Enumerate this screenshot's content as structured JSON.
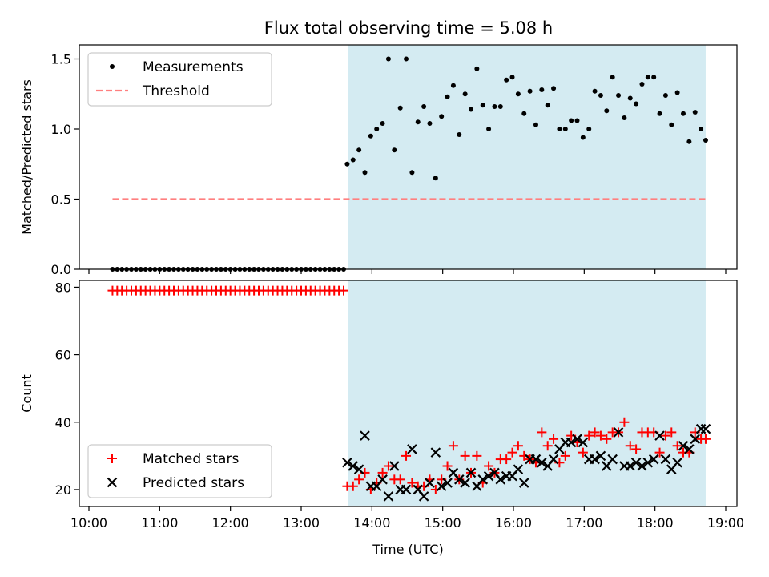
{
  "figure": {
    "title": "Flux total observing time = 5.08 h"
  },
  "chart_data": [
    {
      "type": "scatter",
      "ylabel": "Matched/Predicted stars",
      "xlabel": "",
      "xlim": [
        "10:00",
        "19:00"
      ],
      "ylim": [
        0,
        1.6
      ],
      "xticks": [
        "10:00",
        "11:00",
        "12:00",
        "13:00",
        "14:00",
        "15:00",
        "16:00",
        "17:00",
        "18:00",
        "19:00"
      ],
      "yticks": [
        0.0,
        0.5,
        1.0,
        1.5
      ],
      "ytick_labels": [
        "0.0",
        "0.5",
        "1.0",
        "1.5"
      ],
      "legend": {
        "placement": "top-left",
        "entries": [
          "Measurements",
          "Threshold"
        ]
      },
      "grid": false,
      "shaded_region": {
        "from": "13:40",
        "to": "18:43",
        "color": "#add8e6"
      },
      "series": [
        {
          "name": "Measurements",
          "marker": "dot",
          "color": "#000000",
          "x": [
            "10:20",
            "10:24",
            "10:28",
            "10:32",
            "10:36",
            "10:40",
            "10:44",
            "10:48",
            "10:52",
            "10:56",
            "11:00",
            "11:04",
            "11:08",
            "11:12",
            "11:16",
            "11:20",
            "11:24",
            "11:28",
            "11:32",
            "11:36",
            "11:40",
            "11:44",
            "11:48",
            "11:52",
            "11:56",
            "12:00",
            "12:04",
            "12:08",
            "12:12",
            "12:16",
            "12:20",
            "12:24",
            "12:28",
            "12:32",
            "12:36",
            "12:40",
            "12:44",
            "12:48",
            "12:52",
            "12:56",
            "13:00",
            "13:04",
            "13:08",
            "13:12",
            "13:16",
            "13:20",
            "13:24",
            "13:28",
            "13:32",
            "13:36",
            "13:39",
            "13:44",
            "13:49",
            "13:54",
            "13:59",
            "14:04",
            "14:09",
            "14:14",
            "14:19",
            "14:24",
            "14:29",
            "14:34",
            "14:39",
            "14:44",
            "14:49",
            "14:54",
            "14:59",
            "15:04",
            "15:09",
            "15:14",
            "15:19",
            "15:24",
            "15:29",
            "15:34",
            "15:39",
            "15:44",
            "15:49",
            "15:54",
            "15:59",
            "16:04",
            "16:09",
            "16:14",
            "16:19",
            "16:24",
            "16:29",
            "16:34",
            "16:39",
            "16:44",
            "16:49",
            "16:54",
            "16:59",
            "17:04",
            "17:09",
            "17:14",
            "17:19",
            "17:24",
            "17:29",
            "17:34",
            "17:39",
            "17:44",
            "17:49",
            "17:54",
            "17:59",
            "18:04",
            "18:09",
            "18:14",
            "18:19",
            "18:24",
            "18:29",
            "18:34",
            "18:39",
            "18:43"
          ],
          "y": [
            0,
            0,
            0,
            0,
            0,
            0,
            0,
            0,
            0,
            0,
            0,
            0,
            0,
            0,
            0,
            0,
            0,
            0,
            0,
            0,
            0,
            0,
            0,
            0,
            0,
            0,
            0,
            0,
            0,
            0,
            0,
            0,
            0,
            0,
            0,
            0,
            0,
            0,
            0,
            0,
            0,
            0,
            0,
            0,
            0,
            0,
            0,
            0,
            0,
            0,
            0.75,
            0.78,
            0.85,
            0.69,
            0.95,
            1.0,
            1.04,
            1.5,
            0.85,
            1.15,
            1.5,
            0.69,
            1.05,
            1.16,
            1.04,
            0.65,
            1.09,
            1.23,
            1.31,
            0.96,
            1.25,
            1.14,
            1.43,
            1.17,
            1.0,
            1.16,
            1.16,
            1.35,
            1.37,
            1.25,
            1.11,
            1.27,
            1.03,
            1.28,
            1.17,
            1.29,
            1.0,
            1.0,
            1.06,
            1.06,
            0.94,
            1.0,
            1.27,
            1.24,
            1.13,
            1.37,
            1.24,
            1.08,
            1.22,
            1.18,
            1.32,
            1.37,
            1.37,
            1.11,
            1.24,
            1.03,
            1.26,
            1.11,
            0.91,
            1.12,
            1.0,
            0.92
          ]
        },
        {
          "name": "Threshold",
          "marker": "dashed-line",
          "color": "#ff7f7f",
          "x": [
            "10:20",
            "18:43"
          ],
          "y": [
            0.5,
            0.5
          ]
        }
      ]
    },
    {
      "type": "scatter",
      "ylabel": "Count",
      "xlabel": "Time (UTC)",
      "xlim": [
        "10:00",
        "19:00"
      ],
      "ylim": [
        15,
        82
      ],
      "xticks": [
        "10:00",
        "11:00",
        "12:00",
        "13:00",
        "14:00",
        "15:00",
        "16:00",
        "17:00",
        "18:00",
        "19:00"
      ],
      "yticks": [
        20,
        40,
        60,
        80
      ],
      "ytick_labels": [
        "20",
        "40",
        "60",
        "80"
      ],
      "legend": {
        "placement": "bottom-left",
        "entries": [
          "Matched stars",
          "Predicted stars"
        ]
      },
      "grid": false,
      "shaded_region": {
        "from": "13:40",
        "to": "18:43",
        "color": "#add8e6"
      },
      "series": [
        {
          "name": "Matched stars",
          "marker": "plus",
          "color": "#ff0000",
          "x": [
            "10:20",
            "10:24",
            "10:28",
            "10:32",
            "10:36",
            "10:40",
            "10:44",
            "10:48",
            "10:52",
            "10:56",
            "11:00",
            "11:04",
            "11:08",
            "11:12",
            "11:16",
            "11:20",
            "11:24",
            "11:28",
            "11:32",
            "11:36",
            "11:40",
            "11:44",
            "11:48",
            "11:52",
            "11:56",
            "12:00",
            "12:04",
            "12:08",
            "12:12",
            "12:16",
            "12:20",
            "12:24",
            "12:28",
            "12:32",
            "12:36",
            "12:40",
            "12:44",
            "12:48",
            "12:52",
            "12:56",
            "13:00",
            "13:04",
            "13:08",
            "13:12",
            "13:16",
            "13:20",
            "13:24",
            "13:28",
            "13:32",
            "13:36",
            "13:39",
            "13:44",
            "13:49",
            "13:54",
            "13:59",
            "14:04",
            "14:09",
            "14:14",
            "14:19",
            "14:24",
            "14:29",
            "14:34",
            "14:39",
            "14:44",
            "14:49",
            "14:54",
            "14:59",
            "15:04",
            "15:09",
            "15:14",
            "15:19",
            "15:24",
            "15:29",
            "15:34",
            "15:39",
            "15:44",
            "15:49",
            "15:54",
            "15:59",
            "16:04",
            "16:09",
            "16:14",
            "16:19",
            "16:24",
            "16:29",
            "16:34",
            "16:39",
            "16:44",
            "16:49",
            "16:54",
            "16:59",
            "17:04",
            "17:09",
            "17:14",
            "17:19",
            "17:24",
            "17:29",
            "17:34",
            "17:39",
            "17:44",
            "17:49",
            "17:54",
            "17:59",
            "18:04",
            "18:09",
            "18:14",
            "18:19",
            "18:24",
            "18:29",
            "18:34",
            "18:39",
            "18:43"
          ],
          "y": [
            79,
            79,
            79,
            79,
            79,
            79,
            79,
            79,
            79,
            79,
            79,
            79,
            79,
            79,
            79,
            79,
            79,
            79,
            79,
            79,
            79,
            79,
            79,
            79,
            79,
            79,
            79,
            79,
            79,
            79,
            79,
            79,
            79,
            79,
            79,
            79,
            79,
            79,
            79,
            79,
            79,
            79,
            79,
            79,
            79,
            79,
            79,
            79,
            79,
            79,
            21,
            21,
            23,
            25,
            20,
            22,
            25,
            27,
            23,
            23,
            30,
            22,
            21,
            21,
            23,
            20,
            23,
            27,
            33,
            23,
            30,
            25,
            30,
            22,
            27,
            25,
            29,
            29,
            31,
            33,
            30,
            29,
            28,
            37,
            33,
            35,
            28,
            30,
            36,
            34,
            31,
            36,
            37,
            36,
            35,
            37,
            37,
            40,
            33,
            32,
            37,
            37,
            37,
            31,
            36,
            37,
            33,
            31,
            31,
            37,
            35,
            35
          ]
        },
        {
          "name": "Predicted stars",
          "marker": "x",
          "color": "#000000",
          "x": [
            "13:39",
            "13:44",
            "13:49",
            "13:54",
            "13:59",
            "14:04",
            "14:09",
            "14:14",
            "14:19",
            "14:24",
            "14:29",
            "14:34",
            "14:39",
            "14:44",
            "14:49",
            "14:54",
            "14:59",
            "15:04",
            "15:09",
            "15:14",
            "15:19",
            "15:24",
            "15:29",
            "15:34",
            "15:39",
            "15:44",
            "15:49",
            "15:54",
            "15:59",
            "16:04",
            "16:09",
            "16:14",
            "16:19",
            "16:24",
            "16:29",
            "16:34",
            "16:39",
            "16:44",
            "16:49",
            "16:54",
            "16:59",
            "17:04",
            "17:09",
            "17:14",
            "17:19",
            "17:24",
            "17:29",
            "17:34",
            "17:39",
            "17:44",
            "17:49",
            "17:54",
            "17:59",
            "18:04",
            "18:09",
            "18:14",
            "18:19",
            "18:24",
            "18:29",
            "18:34",
            "18:39",
            "18:43"
          ],
          "y": [
            28,
            27,
            26,
            36,
            21,
            21,
            23,
            18,
            27,
            20,
            20,
            32,
            20,
            18,
            22,
            31,
            21,
            22,
            25,
            23,
            22,
            25,
            21,
            23,
            24,
            25,
            23,
            24,
            24,
            26,
            22,
            29,
            29,
            28,
            27,
            29,
            32,
            34,
            34,
            35,
            34,
            29,
            29,
            30,
            27,
            29,
            37,
            27,
            27,
            28,
            27,
            28,
            29,
            36,
            29,
            26,
            28,
            33,
            32,
            35,
            38,
            38
          ]
        }
      ]
    }
  ]
}
